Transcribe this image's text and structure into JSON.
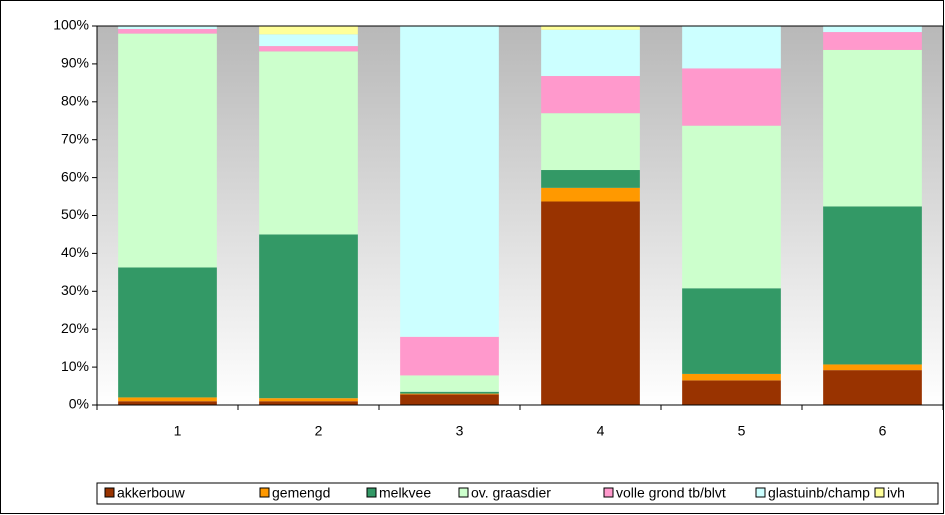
{
  "chart_data": {
    "type": "stacked_bar",
    "categories": [
      "1",
      "2",
      "3",
      "4",
      "5",
      "6"
    ],
    "series": [
      {
        "name": "akkerbouw",
        "color": "#993300",
        "values": [
          1,
          1,
          2.8,
          53.7,
          6.5,
          9.2
        ]
      },
      {
        "name": "gemengd",
        "color": "#ff9900",
        "values": [
          1,
          0.8,
          0.2,
          3.6,
          1.7,
          1.5
        ]
      },
      {
        "name": "melkvee",
        "color": "#339966",
        "values": [
          34.3,
          43.2,
          0.5,
          4.7,
          22.6,
          41.7
        ]
      },
      {
        "name": "ov. graasdier",
        "color": "#ccffcc",
        "values": [
          61.7,
          48.3,
          4.3,
          15,
          42.9,
          41.3
        ]
      },
      {
        "name": "volle grond tb/blvt",
        "color": "#ff99cc",
        "values": [
          1.2,
          1.4,
          10.2,
          9.8,
          15.1,
          4.7
        ]
      },
      {
        "name": "glastuinb/champ",
        "color": "#ccffff",
        "values": [
          0.8,
          3.1,
          82,
          12.2,
          11.2,
          1.6
        ]
      },
      {
        "name": "ivh",
        "color": "#ffff99",
        "values": [
          0,
          2.2,
          0,
          1,
          0,
          0
        ]
      }
    ],
    "ylim": [
      0,
      100
    ],
    "yticks": [
      {
        "value": 0,
        "label": "0%"
      },
      {
        "value": 10,
        "label": "10%"
      },
      {
        "value": 20,
        "label": "20%"
      },
      {
        "value": 30,
        "label": "30%"
      },
      {
        "value": 40,
        "label": "40%"
      },
      {
        "value": 50,
        "label": "50%"
      },
      {
        "value": 60,
        "label": "60%"
      },
      {
        "value": 70,
        "label": "70%"
      },
      {
        "value": 80,
        "label": "80%"
      },
      {
        "value": 90,
        "label": "90%"
      },
      {
        "value": 100,
        "label": "100%"
      }
    ],
    "legend": "bottom"
  }
}
